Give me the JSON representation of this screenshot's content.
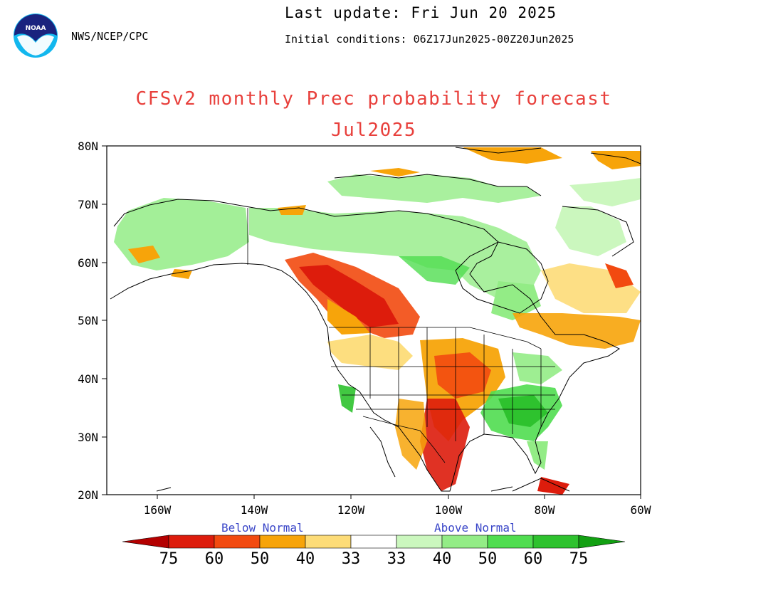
{
  "header": {
    "agency": "NWS/NCEP/CPC",
    "last_update": "Last update: Fri Jun 20 2025",
    "initial_conditions": "Initial conditions: 06Z17Jun2025-00Z20Jun2025",
    "title": "CFSv2 monthly Prec probability forecast",
    "subtitle": "Jul2025",
    "logo_text": "NOAA"
  },
  "map": {
    "lat_labels": [
      "80N",
      "70N",
      "60N",
      "50N",
      "40N",
      "30N",
      "20N"
    ],
    "lon_labels": [
      "160W",
      "140W",
      "120W",
      "100W",
      "80W",
      "60W"
    ]
  },
  "colorbar": {
    "below_label": "Below Normal",
    "above_label": "Above Normal",
    "labels": [
      "75",
      "60",
      "50",
      "40",
      "33",
      "33",
      "40",
      "50",
      "60",
      "75"
    ],
    "colors": [
      "#b40000",
      "#dd1c0c",
      "#f24a10",
      "#f7a40a",
      "#fddc78",
      "#ffffff",
      "#cbf7be",
      "#93ec86",
      "#50dd50",
      "#2ec22e",
      "#12a012"
    ]
  }
}
